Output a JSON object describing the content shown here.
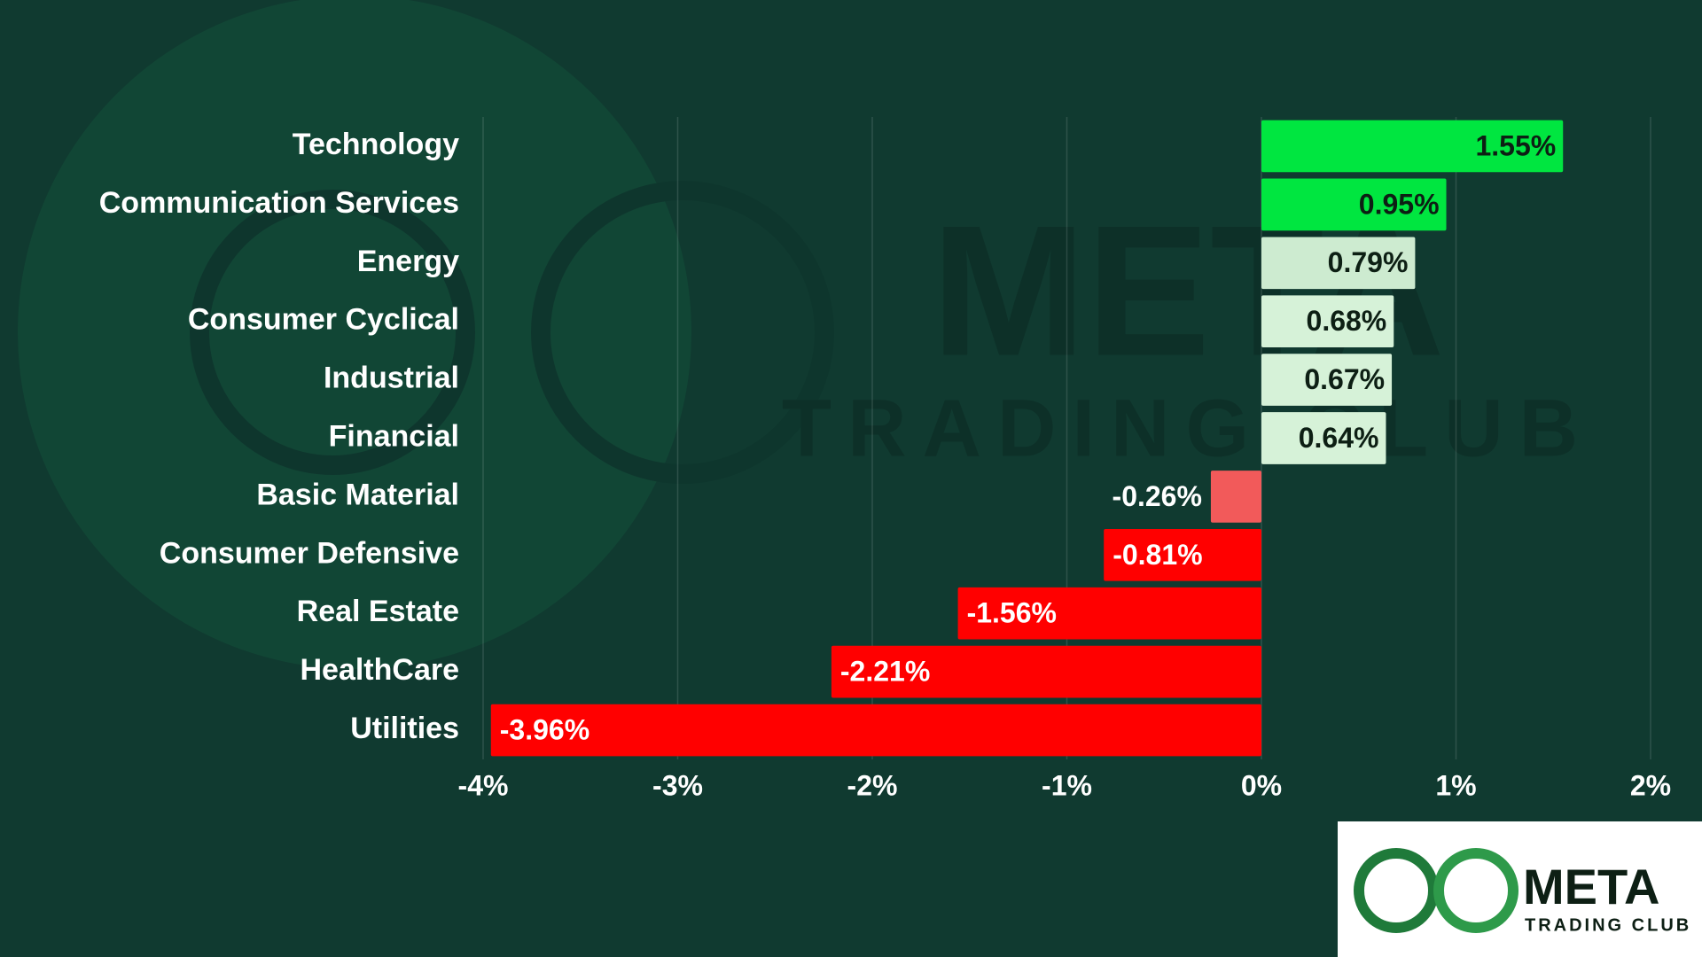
{
  "chart_data": {
    "type": "barh",
    "categories": [
      "Technology",
      "Communication Services",
      "Energy",
      "Consumer Cyclical",
      "Industrial",
      "Financial",
      "Basic Material",
      "Consumer Defensive",
      "Real Estate",
      "HealthCare",
      "Utilities"
    ],
    "values": [
      1.55,
      0.95,
      0.79,
      0.68,
      0.67,
      0.64,
      -0.26,
      -0.81,
      -1.56,
      -2.21,
      -3.96
    ],
    "value_labels": [
      "1.55%",
      "0.95%",
      "0.79%",
      "0.68%",
      "0.67%",
      "0.64%",
      "-0.26%",
      "-0.81%",
      "-1.56%",
      "-2.21%",
      "-3.96%"
    ],
    "colors": [
      "#00e640",
      "#00e640",
      "#cdebd0",
      "#d6f2d8",
      "#d6f2d8",
      "#d6f2d8",
      "#f25a5a",
      "#ff0000",
      "#ff0000",
      "#ff0000",
      "#ff0000"
    ],
    "xlim": [
      -4,
      2
    ],
    "xticks": [
      {
        "value": -4,
        "label": "-4%"
      },
      {
        "value": -3,
        "label": "-3%"
      },
      {
        "value": -2,
        "label": "-2%"
      },
      {
        "value": -1,
        "label": "-1%"
      },
      {
        "value": 0,
        "label": "0%"
      },
      {
        "value": 1,
        "label": "1%"
      },
      {
        "value": 2,
        "label": "2%"
      }
    ],
    "grid": true
  },
  "logo": {
    "name": "META",
    "tagline": "TRADING CLUB"
  }
}
